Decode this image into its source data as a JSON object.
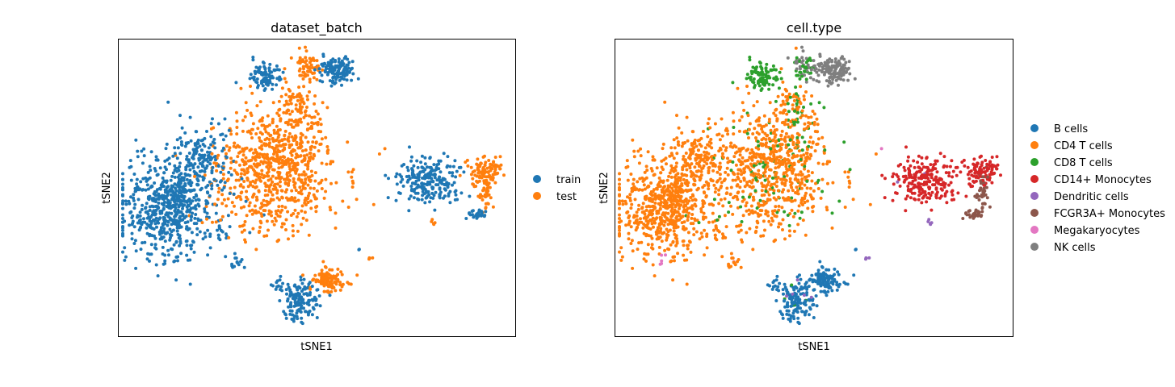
{
  "chart_data": [
    {
      "type": "scatter",
      "title": "dataset_batch",
      "xlabel": "tSNE1",
      "ylabel": "tSNE2",
      "ticks": "none",
      "grid": false,
      "legend_position": "right",
      "series": [
        {
          "name": "train",
          "color": "#1f77b4"
        },
        {
          "name": "test",
          "color": "#ff7f0e"
        }
      ]
    },
    {
      "type": "scatter",
      "title": "cell.type",
      "xlabel": "tSNE1",
      "ylabel": "tSNE2",
      "ticks": "none",
      "grid": false,
      "legend_position": "right",
      "series": [
        {
          "name": "B cells",
          "color": "#1f77b4"
        },
        {
          "name": "CD4 T cells",
          "color": "#ff7f0e"
        },
        {
          "name": "CD8 T cells",
          "color": "#2ca02c"
        },
        {
          "name": "CD14+ Monocytes",
          "color": "#d62728"
        },
        {
          "name": "Dendritic cells",
          "color": "#9467bd"
        },
        {
          "name": "FCGR3A+ Monocytes",
          "color": "#8c564b"
        },
        {
          "name": "Megakaryocytes",
          "color": "#e377c2"
        },
        {
          "name": "NK cells",
          "color": "#7f7f7f"
        }
      ]
    }
  ]
}
